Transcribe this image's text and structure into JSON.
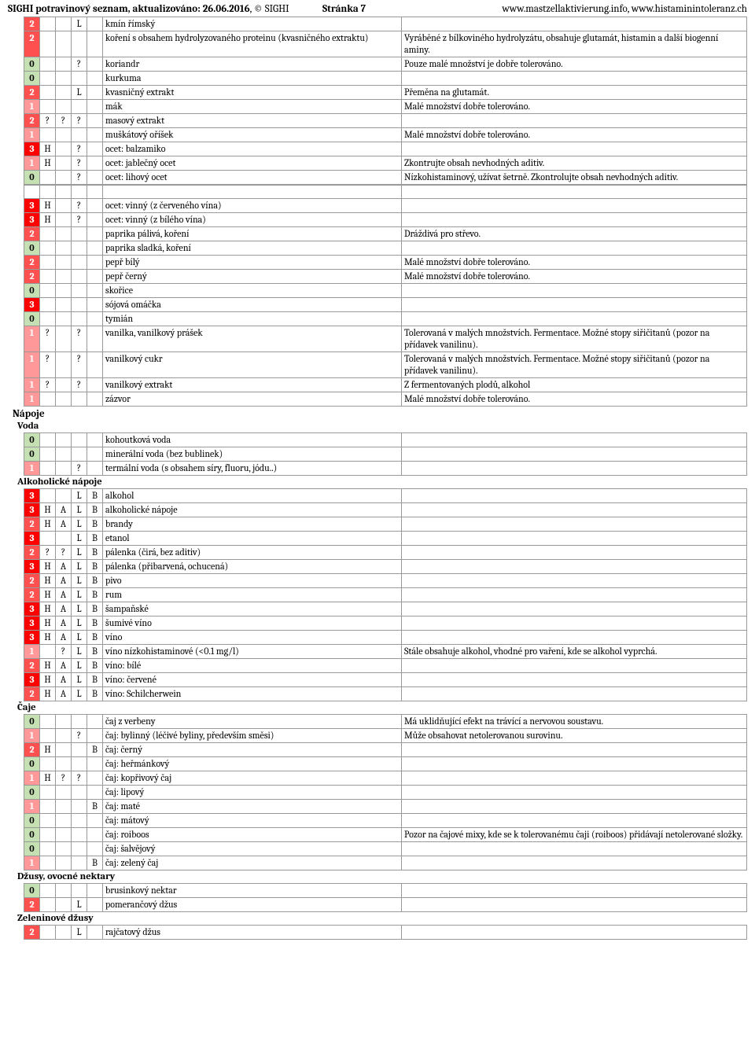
{
  "header": {
    "title_prefix": "SIGHI potravinový seznam, aktualizováno: ",
    "date": "26.06.2016",
    "copyright": ", © SIGHI",
    "page_label": "Stránka  7",
    "url_right": "www.mastzellaktivierung.info, www.histaminintoleranz.ch"
  },
  "colors": {
    "lvl0": "#c5e0b3",
    "lvl1": "#ff9999",
    "lvl2": "#ff5050",
    "lvl3": "#ff0000"
  },
  "groups": [
    {
      "rows": [
        {
          "n": "2",
          "h": "",
          "a": "",
          "l": "L",
          "b": "",
          "name": "kmín římský",
          "note": ""
        },
        {
          "n": "2",
          "h": "",
          "a": "",
          "l": "",
          "b": "",
          "name": "koření s obsahem hydrolyzovaného proteinu (kvasničného extraktu)",
          "note": "Vyráběné z bílkoviného hydrolyzátu, obsahuje glutamát, histamin a další biogenní aminy."
        },
        {
          "n": "0",
          "h": "",
          "a": "",
          "l": "?",
          "b": "",
          "name": "koriandr",
          "note": "Pouze malé množství je dobře tolerováno."
        },
        {
          "n": "0",
          "h": "",
          "a": "",
          "l": "",
          "b": "",
          "name": "kurkuma",
          "note": ""
        },
        {
          "n": "2",
          "h": "",
          "a": "",
          "l": "L",
          "b": "",
          "name": "kvasničný extrakt",
          "note": "Přeměna na glutamát."
        },
        {
          "n": "1",
          "h": "",
          "a": "",
          "l": "",
          "b": "",
          "name": "mák",
          "note": "Malé množství dobře tolerováno."
        },
        {
          "n": "2",
          "h": "?",
          "a": "?",
          "l": "?",
          "b": "",
          "name": "masový extrakt",
          "note": ""
        },
        {
          "n": "1",
          "h": "",
          "a": "",
          "l": "",
          "b": "",
          "name": "muškátový oříšek",
          "note": "Malé množství dobře tolerováno."
        },
        {
          "n": "3",
          "h": "H",
          "a": "",
          "l": "?",
          "b": "",
          "name": "ocet: balzamiko",
          "note": ""
        },
        {
          "n": "1",
          "h": "H",
          "a": "",
          "l": "?",
          "b": "",
          "name": "ocet: jablečný ocet",
          "note": "Zkontrujte obsah nevhodných aditiv."
        },
        {
          "n": "0",
          "h": "",
          "a": "",
          "l": "?",
          "b": "",
          "name": "ocet: lihový ocet",
          "note": "Nízkohistaminový, užívat šetrně. Zkontrolujte obsah nevhodných aditiv."
        }
      ]
    },
    {
      "gap": true,
      "rows": [
        {
          "n": "3",
          "h": "H",
          "a": "",
          "l": "?",
          "b": "",
          "name": "ocet: vinný  (z červeného vína)",
          "note": ""
        },
        {
          "n": "3",
          "h": "H",
          "a": "",
          "l": "?",
          "b": "",
          "name": "ocet: vinný (z bílého vína)",
          "note": ""
        },
        {
          "n": "2",
          "h": "",
          "a": "",
          "l": "",
          "b": "",
          "name": "paprika pálivá, koření",
          "note": "Dráždivá pro střevo."
        },
        {
          "n": "0",
          "h": "",
          "a": "",
          "l": "",
          "b": "",
          "name": "paprika sladká, koření",
          "note": ""
        },
        {
          "n": "2",
          "h": "",
          "a": "",
          "l": "",
          "b": "",
          "name": "pepř bílý",
          "note": "Malé množství dobře tolerováno."
        },
        {
          "n": "2",
          "h": "",
          "a": "",
          "l": "",
          "b": "",
          "name": "pepř černý",
          "note": "Malé množství dobře tolerováno."
        },
        {
          "n": "0",
          "h": "",
          "a": "",
          "l": "",
          "b": "",
          "name": "skořice",
          "note": ""
        },
        {
          "n": "3",
          "h": "",
          "a": "",
          "l": "",
          "b": "",
          "name": "sójová omáčka",
          "note": ""
        },
        {
          "n": "0",
          "h": "",
          "a": "",
          "l": "",
          "b": "",
          "name": "tymián",
          "note": ""
        },
        {
          "n": "1",
          "h": "?",
          "a": "",
          "l": "?",
          "b": "",
          "name": "vanilka, vanilkový prášek",
          "note": "Tolerovaná v malých množstvích. Fermentace. Možné stopy siřičitanů (pozor na přídavek vanilinu)."
        },
        {
          "n": "1",
          "h": "?",
          "a": "",
          "l": "?",
          "b": "",
          "name": "vanilkový cukr",
          "note": "Tolerovaná v malých množstvích. Fermentace. Možné stopy siřičitanů (pozor na přídavek vanilinu)."
        },
        {
          "n": "1",
          "h": "?",
          "a": "",
          "l": "?",
          "b": "",
          "name": "vanilkový extrakt",
          "note": "Z fermentovaných plodů, alkohol"
        },
        {
          "n": "1",
          "h": "",
          "a": "",
          "l": "",
          "b": "",
          "name": "zázvor",
          "note": "Malé množství dobře tolerováno."
        }
      ]
    },
    {
      "section": "Nápoje",
      "subsection": "Voda",
      "rows": [
        {
          "n": "0",
          "h": "",
          "a": "",
          "l": "",
          "b": "",
          "name": "kohoutková voda",
          "note": ""
        },
        {
          "n": "0",
          "h": "",
          "a": "",
          "l": "",
          "b": "",
          "name": "minerální voda (bez bublinek)",
          "note": ""
        },
        {
          "n": "1",
          "h": "",
          "a": "",
          "l": "?",
          "b": "",
          "name": "termální voda (s obsahem síry, fluoru, jódu..)",
          "note": ""
        }
      ]
    },
    {
      "subsection": "Alkoholické nápoje",
      "rows": [
        {
          "n": "3",
          "h": "",
          "a": "",
          "l": "L",
          "b": "B",
          "name": "alkohol",
          "note": ""
        },
        {
          "n": "3",
          "h": "H",
          "a": "A",
          "l": "L",
          "b": "B",
          "name": "alkoholické nápoje",
          "note": ""
        },
        {
          "n": "2",
          "h": "H",
          "a": "A",
          "l": "L",
          "b": "B",
          "name": "brandy",
          "note": ""
        },
        {
          "n": "3",
          "h": "",
          "a": "",
          "l": "L",
          "b": "B",
          "name": "etanol",
          "note": ""
        },
        {
          "n": "2",
          "h": "?",
          "a": "?",
          "l": "L",
          "b": "B",
          "name": "pálenka (čirá, bez aditiv)",
          "note": ""
        },
        {
          "n": "3",
          "h": "H",
          "a": "A",
          "l": "L",
          "b": "B",
          "name": "pálenka (přibarvená, ochucená)",
          "note": ""
        },
        {
          "n": "2",
          "h": "H",
          "a": "A",
          "l": "L",
          "b": "B",
          "name": "pivo",
          "note": ""
        },
        {
          "n": "2",
          "h": "H",
          "a": "A",
          "l": "L",
          "b": "B",
          "name": "rum",
          "note": ""
        },
        {
          "n": "3",
          "h": "H",
          "a": "A",
          "l": "L",
          "b": "B",
          "name": "šampaňské",
          "note": ""
        },
        {
          "n": "3",
          "h": "H",
          "a": "A",
          "l": "L",
          "b": "B",
          "name": "šumivé víno",
          "note": ""
        },
        {
          "n": "3",
          "h": "H",
          "a": "A",
          "l": "L",
          "b": "B",
          "name": "víno",
          "note": ""
        },
        {
          "n": "1",
          "h": "",
          "a": "?",
          "l": "L",
          "b": "B",
          "name": "víno nízkohistaminové (<0.1 mg/l)",
          "note": "Stále obsahuje alkohol, vhodné pro vaření, kde se alkohol vyprchá."
        },
        {
          "n": "2",
          "h": "H",
          "a": "A",
          "l": "L",
          "b": "B",
          "name": "víno: bílé",
          "note": ""
        },
        {
          "n": "3",
          "h": "H",
          "a": "A",
          "l": "L",
          "b": "B",
          "name": "víno: červené",
          "note": ""
        },
        {
          "n": "2",
          "h": "H",
          "a": "A",
          "l": "L",
          "b": "B",
          "name": "víno: Schilcherwein",
          "note": ""
        }
      ]
    },
    {
      "subsection": "Čaje",
      "rows": [
        {
          "n": "0",
          "h": "",
          "a": "",
          "l": "",
          "b": "",
          "name": "čaj z verbeny",
          "note": "Má uklidňující efekt na trávící a nervovou soustavu."
        },
        {
          "n": "1",
          "h": "",
          "a": "",
          "l": "?",
          "b": "",
          "name": "čaj: bylinný (léčivé byliny, především směsi)",
          "note": "Může obsahovat netolerovanou surovinu."
        },
        {
          "n": "2",
          "h": "H",
          "a": "",
          "l": "",
          "b": "B",
          "name": "čaj: černý",
          "note": ""
        },
        {
          "n": "0",
          "h": "",
          "a": "",
          "l": "",
          "b": "",
          "name": "čaj: heřmánkový",
          "note": ""
        },
        {
          "n": "1",
          "h": "H",
          "a": "?",
          "l": "?",
          "b": "",
          "name": "čaj: kopřivový čaj",
          "note": ""
        },
        {
          "n": "0",
          "h": "",
          "a": "",
          "l": "",
          "b": "",
          "name": "čaj: lipový",
          "note": ""
        },
        {
          "n": "1",
          "h": "",
          "a": "",
          "l": "",
          "b": "B",
          "name": "čaj: maté",
          "note": ""
        },
        {
          "n": "0",
          "h": "",
          "a": "",
          "l": "",
          "b": "",
          "name": "čaj: mátový",
          "note": ""
        },
        {
          "n": "0",
          "h": "",
          "a": "",
          "l": "",
          "b": "",
          "name": "čaj: roiboos",
          "note": "Pozor na čajové mixy, kde se k tolerovanému čaji (roiboos) přidávají netolerované složky."
        },
        {
          "n": "0",
          "h": "",
          "a": "",
          "l": "",
          "b": "",
          "name": "čaj: šalvějový",
          "note": ""
        },
        {
          "n": "1",
          "h": "",
          "a": "",
          "l": "",
          "b": "B",
          "name": "čaj: zelený čaj",
          "note": ""
        }
      ]
    },
    {
      "subsection": "Džusy, ovocné nektary",
      "rows": [
        {
          "n": "0",
          "h": "",
          "a": "",
          "l": "",
          "b": "",
          "name": "brusinkový nektar",
          "note": ""
        },
        {
          "n": "2",
          "h": "",
          "a": "",
          "l": "L",
          "b": "",
          "name": "pomerančový džus",
          "note": ""
        }
      ]
    },
    {
      "subsection": "Zeleninové džusy",
      "rows": [
        {
          "n": "2",
          "h": "",
          "a": "",
          "l": "L",
          "b": "",
          "name": "rajčatový džus",
          "note": ""
        }
      ]
    }
  ]
}
